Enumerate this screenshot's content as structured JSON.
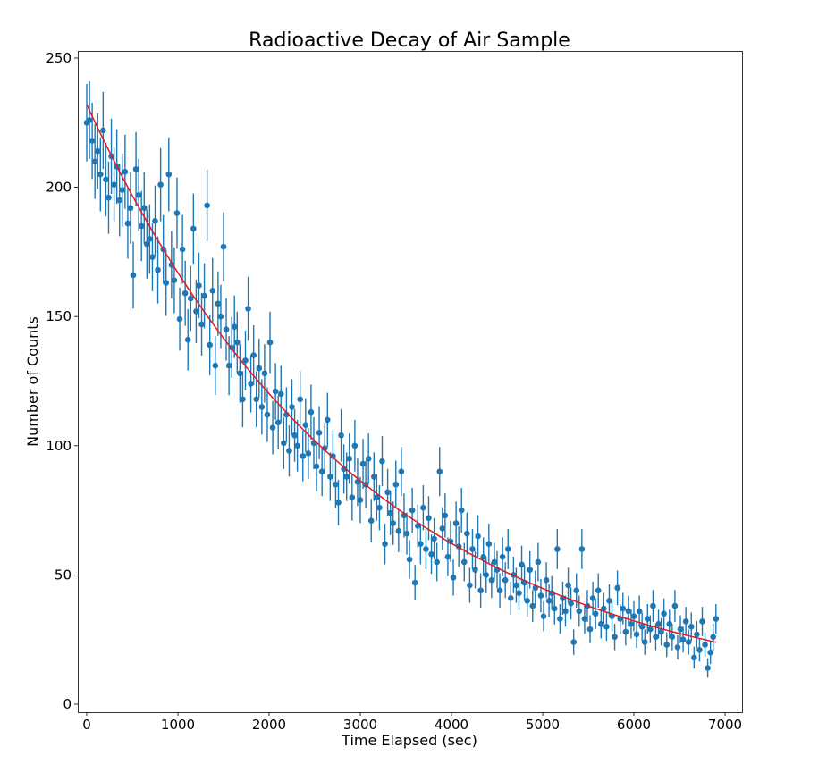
{
  "chart_data": {
    "type": "scatter",
    "title": "Radioactive Decay of Air Sample",
    "xlabel": "Time Elapsed (sec)",
    "ylabel": "Number of Counts",
    "xlim": [
      -100,
      7200
    ],
    "ylim": [
      -4,
      253
    ],
    "xticks": [
      0,
      1000,
      2000,
      3000,
      4000,
      5000,
      6000,
      7000
    ],
    "yticks": [
      0,
      50,
      100,
      150,
      200,
      250
    ],
    "grid": false,
    "legend": "none",
    "colors": {
      "points": "#1f77b4",
      "fit": "#e41a1c"
    },
    "series": [
      {
        "kind": "errorbar",
        "x_start": 0,
        "x_step": 30,
        "values": [
          225,
          226,
          218,
          210,
          214,
          205,
          222,
          203,
          196,
          212,
          201,
          208,
          195,
          199,
          206,
          186,
          192,
          166,
          207,
          197,
          185,
          192,
          178,
          180,
          173,
          187,
          168,
          201,
          176,
          163,
          205,
          170,
          164,
          190,
          149,
          176,
          159,
          141,
          157,
          184,
          152,
          162,
          147,
          158,
          193,
          139,
          160,
          131,
          155,
          150,
          177,
          145,
          131,
          138,
          146,
          140,
          128,
          118,
          133,
          153,
          124,
          135,
          118,
          130,
          115,
          128,
          112,
          140,
          107,
          121,
          109,
          120,
          101,
          112,
          98,
          115,
          104,
          100,
          118,
          96,
          108,
          97,
          113,
          101,
          92,
          105,
          90,
          99,
          110,
          88,
          96,
          85,
          78,
          104,
          91,
          88,
          95,
          80,
          100,
          86,
          79,
          93,
          85,
          95,
          71,
          88,
          80,
          76,
          94,
          62,
          82,
          74,
          70,
          85,
          67,
          90,
          73,
          66,
          56,
          75,
          47,
          69,
          62,
          76,
          60,
          72,
          58,
          64,
          55,
          90,
          68,
          73,
          57,
          63,
          49,
          70,
          61,
          75,
          55,
          66,
          46,
          60,
          52,
          65,
          44,
          57,
          50,
          62,
          48,
          55,
          52,
          44,
          57,
          48,
          60,
          41,
          50,
          46,
          43,
          54,
          47,
          40,
          52,
          38,
          45,
          55,
          42,
          34,
          48,
          40,
          43,
          37,
          60,
          33,
          41,
          36,
          46,
          39,
          24,
          44,
          36,
          60,
          33,
          38,
          29,
          41,
          35,
          44,
          31,
          37,
          30,
          40,
          34,
          26,
          45,
          33,
          37,
          28,
          36,
          31,
          34,
          27,
          36,
          30,
          24,
          33,
          29,
          38,
          26,
          31,
          28,
          35,
          23,
          31,
          26,
          38,
          22,
          29,
          25,
          32,
          24,
          30,
          18,
          27,
          21,
          32,
          23,
          14,
          20,
          26,
          33
        ]
      },
      {
        "kind": "fit-line",
        "model": "A*exp(-k*t)",
        "amplitude": 232,
        "decay_rate": 0.000329,
        "x_range": [
          0,
          6900
        ]
      }
    ]
  }
}
